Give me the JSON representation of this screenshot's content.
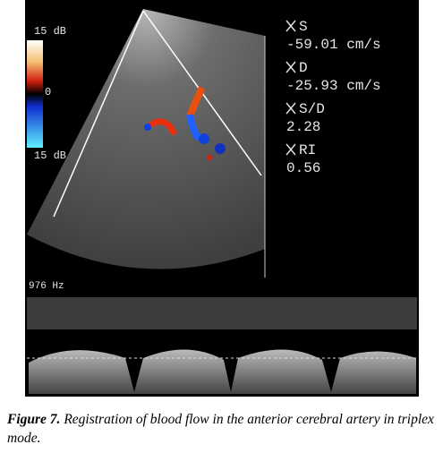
{
  "image": {
    "colorbar": {
      "top": "15 dB",
      "middle": "0",
      "bottom": "15 dB"
    },
    "measurements": [
      {
        "label": "S",
        "value": "-59.01 cm/s"
      },
      {
        "label": "D",
        "value": "-25.93 cm/s"
      },
      {
        "label": "S/D",
        "value": "2.28"
      },
      {
        "label": "RI",
        "value": "0.56"
      }
    ],
    "prf": "976 Hz"
  },
  "caption": {
    "label": "Figure 7.",
    "text": "Registration of blood flow in the anterior cerebral artery in triplex mode."
  }
}
